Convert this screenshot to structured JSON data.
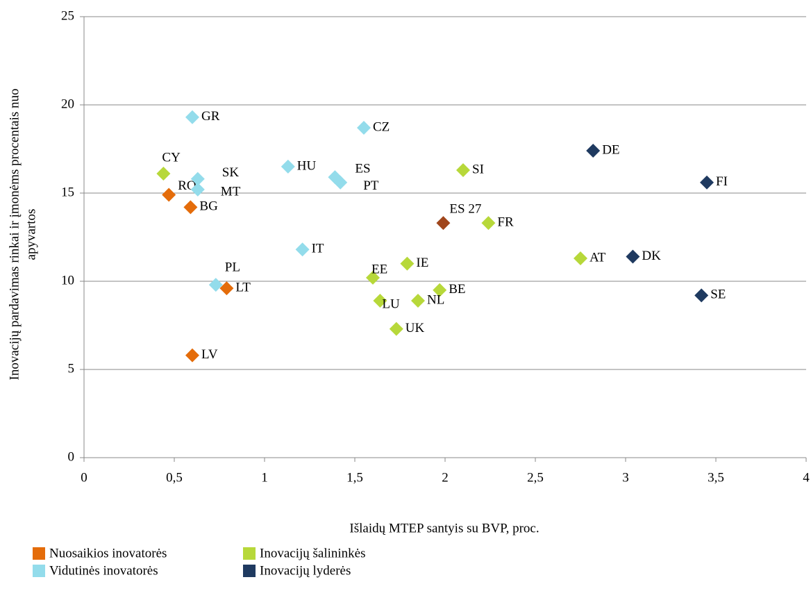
{
  "chart_data": {
    "type": "scatter",
    "xlabel": "Išlaidų MTEP santyis su BVP, proc.",
    "ylabel": [
      "Inovacijų pardavimas rinkai ir įmonėms procentais nuo",
      "apyvartos"
    ],
    "xlim": [
      0,
      4
    ],
    "ylim": [
      0,
      25
    ],
    "xticks": [
      0,
      {
        "value": 0.5,
        "label": "0,5"
      },
      1,
      {
        "value": 1.5,
        "label": "1,5"
      },
      2,
      {
        "value": 2.5,
        "label": "2,5"
      },
      3,
      {
        "value": 3.5,
        "label": "3,5"
      },
      4
    ],
    "yticks": [
      0,
      5,
      10,
      15,
      20,
      25
    ],
    "grid": true,
    "series": [
      {
        "name": "Nuosaikios inovatorės",
        "color": "#e46c0a",
        "labels": [
          "RO",
          "BG",
          "LT",
          "LV"
        ],
        "x": [
          0.47,
          0.59,
          0.79,
          0.6
        ],
        "y": [
          14.9,
          14.2,
          9.6,
          5.8
        ]
      },
      {
        "name": "Vidutinės inovatorės",
        "color": "#93dceb",
        "labels": [
          "GR",
          "SK",
          "MT",
          "HU",
          "ES",
          "PT",
          "CZ",
          "IT",
          "PL"
        ],
        "x": [
          0.6,
          0.63,
          0.63,
          1.13,
          1.39,
          1.42,
          1.55,
          1.21,
          0.73
        ],
        "y": [
          19.3,
          15.8,
          15.2,
          16.5,
          15.9,
          15.6,
          18.7,
          11.8,
          9.8
        ]
      },
      {
        "name": "Inovacijų šalininkės",
        "color": "#b7d83a",
        "labels": [
          "CY",
          "SI",
          "FR",
          "IE",
          "EE",
          "BE",
          "LU",
          "NL",
          "UK",
          "AT"
        ],
        "x": [
          0.44,
          2.1,
          2.24,
          1.79,
          1.6,
          1.97,
          1.64,
          1.85,
          1.73,
          2.75
        ],
        "y": [
          16.1,
          16.3,
          13.3,
          11.0,
          10.2,
          9.5,
          8.9,
          8.9,
          7.3,
          11.3
        ]
      },
      {
        "name": "Inovacijų lyderės",
        "color": "#1f3a60",
        "labels": [
          "DE",
          "FI",
          "DK",
          "SE"
        ],
        "x": [
          2.82,
          3.45,
          3.04,
          3.42
        ],
        "y": [
          17.4,
          15.6,
          11.4,
          9.2
        ]
      },
      {
        "color": "#a0461c",
        "labels": [
          "ES 27"
        ],
        "x": [
          1.99
        ],
        "y": [
          13.3
        ]
      }
    ]
  }
}
